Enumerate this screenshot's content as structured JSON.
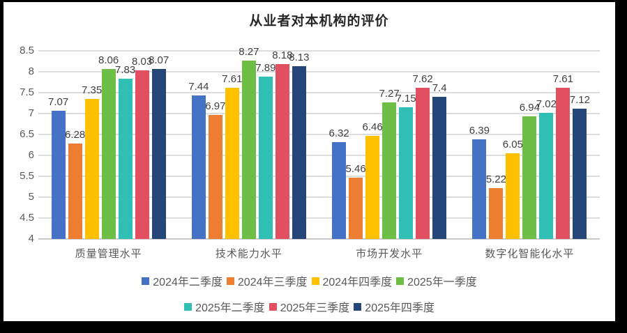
{
  "title": "从业者对本机构的评价",
  "chart_data": {
    "type": "bar",
    "title": "从业者对本机构的评价",
    "xlabel": "",
    "ylabel": "",
    "categories": [
      "质量管理水平",
      "技术能力水平",
      "市场开发水平",
      "数字化智能化水平"
    ],
    "series": [
      {
        "name": "2024年二季度",
        "color": "#4472C4",
        "values": [
          7.07,
          7.44,
          6.32,
          6.39
        ]
      },
      {
        "name": "2024年三季度",
        "color": "#ED7D31",
        "values": [
          6.28,
          6.97,
          5.46,
          5.22
        ]
      },
      {
        "name": "2024年四季度",
        "color": "#FFC000",
        "values": [
          7.35,
          7.61,
          6.46,
          6.05
        ]
      },
      {
        "name": "2025年一季度",
        "color": "#6DBE45",
        "values": [
          8.06,
          8.27,
          7.27,
          6.94
        ]
      },
      {
        "name": "2025年二季度",
        "color": "#2FBFB4",
        "values": [
          7.83,
          7.89,
          7.15,
          7.02
        ]
      },
      {
        "name": "2025年三季度",
        "color": "#E24F60",
        "values": [
          8.03,
          8.18,
          7.62,
          7.61
        ]
      },
      {
        "name": "2025年四季度",
        "color": "#254679",
        "values": [
          8.07,
          8.13,
          7.4,
          7.12
        ]
      }
    ],
    "ylim": [
      4,
      8.5
    ],
    "ytick_step": 0.5,
    "grid": true,
    "legend_position": "bottom",
    "legend_row_split": [
      4,
      3
    ]
  },
  "colors": {
    "background": "#ffffff",
    "frame": "#000000",
    "gridline": "#dcdcdc",
    "axis_text": "#595959",
    "data_label": "#404040"
  }
}
